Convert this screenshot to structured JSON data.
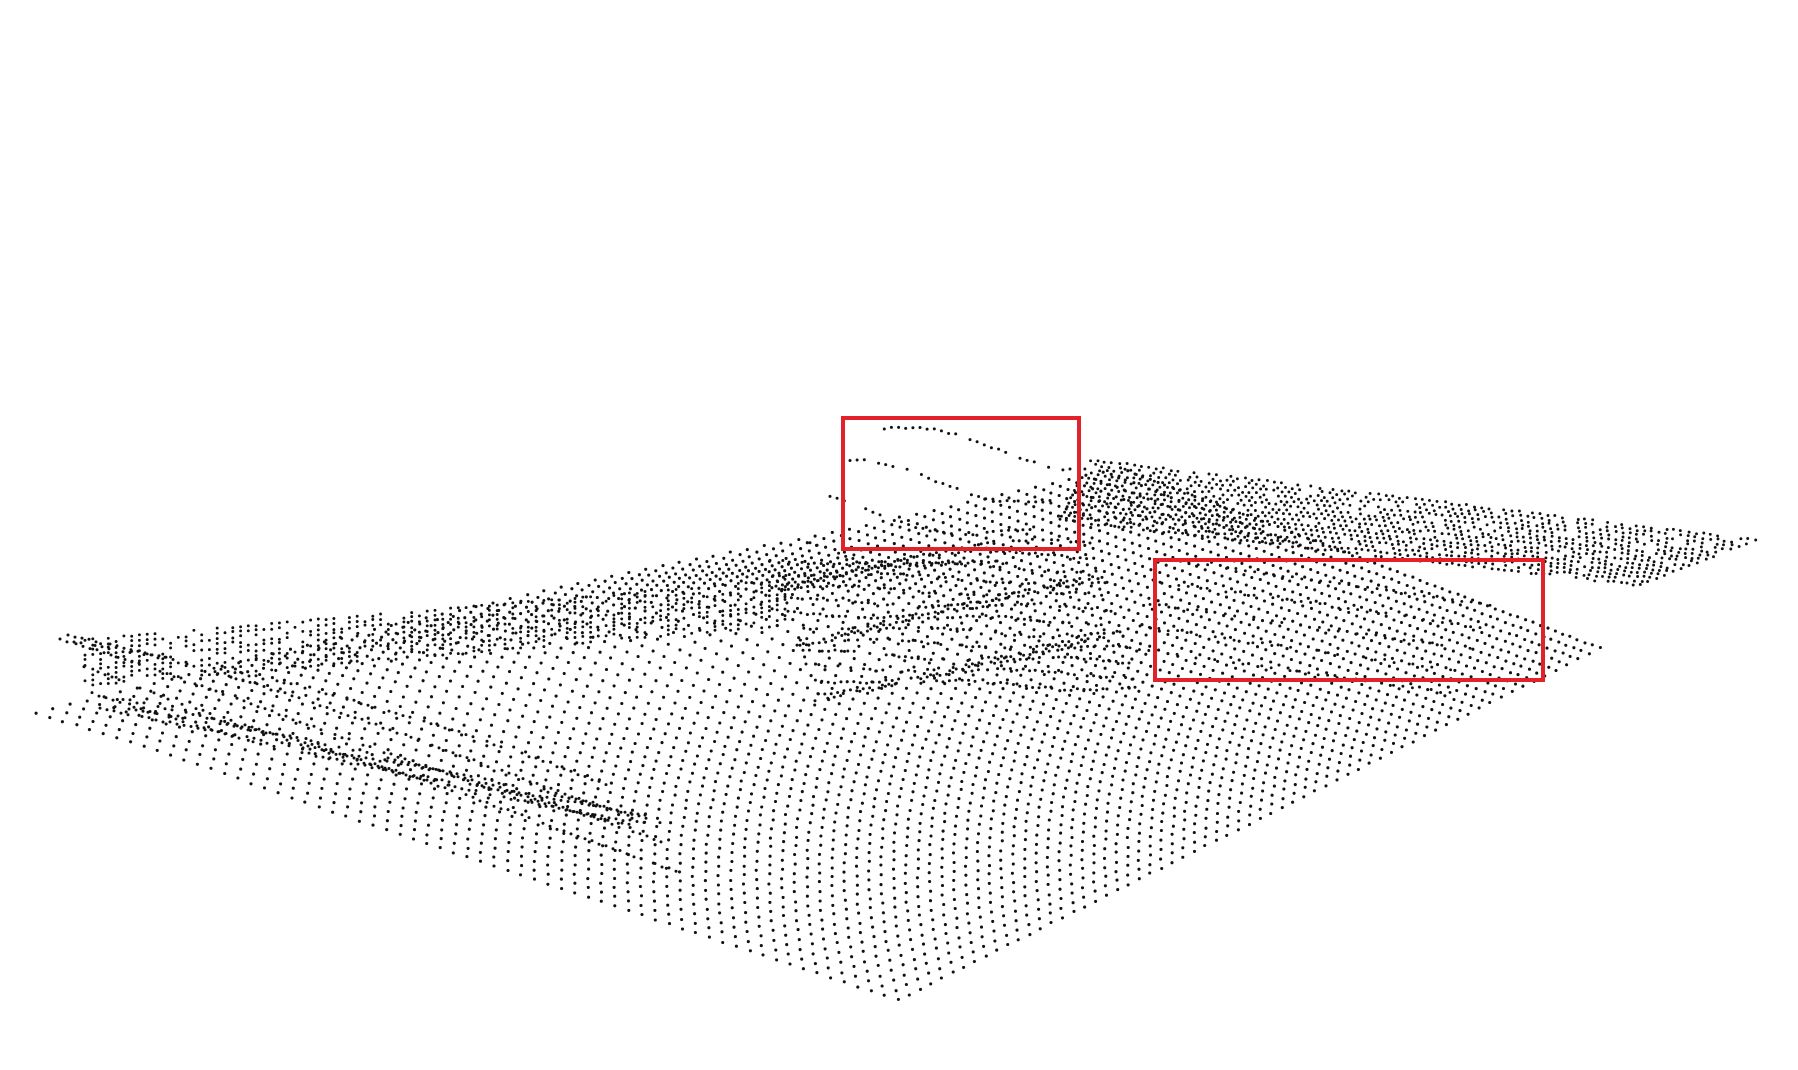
{
  "figure": {
    "background_color": "#ffffff",
    "point_color": "#111111",
    "highlight_color": "#e3212b",
    "highlight_count": 2
  }
}
